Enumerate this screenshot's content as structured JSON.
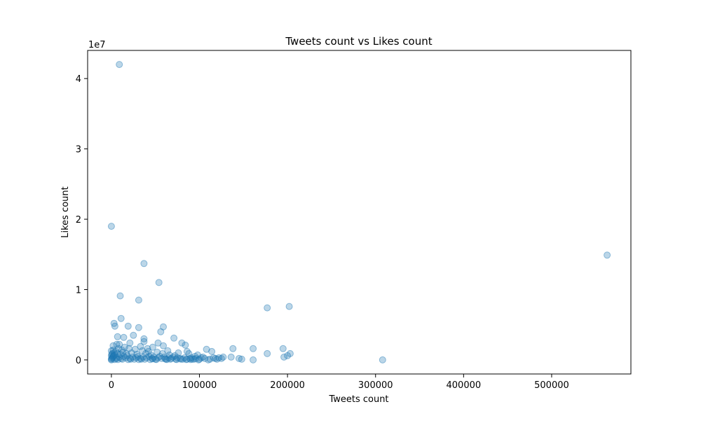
{
  "chart_data": {
    "type": "scatter",
    "title": "Tweets count vs Likes count",
    "xlabel": "Tweets count",
    "ylabel": "Likes count",
    "y_offset_label": "1e7",
    "xlim": [
      -27000,
      590000
    ],
    "ylim": [
      -2000000,
      44000000
    ],
    "x_ticks": [
      0,
      100000,
      200000,
      300000,
      400000,
      500000
    ],
    "x_tick_labels": [
      "0",
      "100000",
      "200000",
      "300000",
      "400000",
      "500000"
    ],
    "y_ticks": [
      0,
      10000000,
      20000000,
      30000000,
      40000000
    ],
    "y_tick_labels": [
      "0",
      "1",
      "2",
      "3",
      "4"
    ],
    "grid": false,
    "marker_color": "#1f77b4",
    "marker_alpha": 0.3,
    "series": [
      {
        "points": [
          [
            9000,
            42000000
          ],
          [
            0,
            19000000
          ],
          [
            563000,
            14900000
          ],
          [
            37000,
            13700000
          ],
          [
            54000,
            11000000
          ],
          [
            10000,
            9100000
          ],
          [
            31000,
            8500000
          ],
          [
            202000,
            7600000
          ],
          [
            177000,
            7400000
          ],
          [
            3000,
            5200000
          ],
          [
            11000,
            5900000
          ],
          [
            4000,
            4800000
          ],
          [
            19000,
            4800000
          ],
          [
            59000,
            4700000
          ],
          [
            31000,
            4600000
          ],
          [
            56000,
            4000000
          ],
          [
            25000,
            3500000
          ],
          [
            7000,
            3300000
          ],
          [
            14000,
            3200000
          ],
          [
            71000,
            3100000
          ],
          [
            37000,
            3000000
          ],
          [
            37000,
            2600000
          ],
          [
            80000,
            2400000
          ],
          [
            21000,
            2400000
          ],
          [
            6000,
            2200000
          ],
          [
            2000,
            2000000
          ],
          [
            9000,
            2200000
          ],
          [
            53000,
            2400000
          ],
          [
            33000,
            1900000
          ],
          [
            84000,
            2100000
          ],
          [
            41000,
            1600000
          ],
          [
            59000,
            2000000
          ],
          [
            47000,
            1800000
          ],
          [
            108000,
            1500000
          ],
          [
            114000,
            1200000
          ],
          [
            138000,
            1600000
          ],
          [
            161000,
            1600000
          ],
          [
            195000,
            1600000
          ],
          [
            177000,
            900000
          ],
          [
            203000,
            900000
          ],
          [
            200000,
            600000
          ],
          [
            196000,
            400000
          ],
          [
            136000,
            400000
          ],
          [
            145000,
            200000
          ],
          [
            148000,
            100000
          ],
          [
            161000,
            0
          ],
          [
            308000,
            0
          ],
          [
            110000,
            0
          ],
          [
            122000,
            300000
          ],
          [
            127000,
            400000
          ],
          [
            118000,
            200000
          ],
          [
            95000,
            500000
          ],
          [
            98000,
            700000
          ],
          [
            104000,
            400000
          ],
          [
            91000,
            300000
          ],
          [
            88000,
            900000
          ],
          [
            86000,
            1200000
          ],
          [
            76000,
            1000000
          ],
          [
            72000,
            600000
          ],
          [
            66000,
            700000
          ],
          [
            64000,
            1300000
          ],
          [
            58000,
            900000
          ],
          [
            52000,
            1100000
          ],
          [
            45000,
            700000
          ],
          [
            42000,
            1200000
          ],
          [
            39000,
            900000
          ],
          [
            35000,
            1300000
          ],
          [
            29000,
            800000
          ],
          [
            27000,
            1500000
          ],
          [
            23000,
            1000000
          ],
          [
            20000,
            1600000
          ],
          [
            17000,
            900000
          ],
          [
            15000,
            1800000
          ],
          [
            13000,
            1100000
          ],
          [
            12000,
            1400000
          ],
          [
            10000,
            800000
          ],
          [
            8000,
            1600000
          ],
          [
            7000,
            900000
          ],
          [
            5000,
            1200000
          ],
          [
            4000,
            700000
          ],
          [
            3000,
            1000000
          ],
          [
            2000,
            500000
          ],
          [
            1000,
            300000
          ],
          [
            0,
            100000
          ],
          [
            0,
            0
          ],
          [
            500,
            200000
          ],
          [
            1500,
            400000
          ],
          [
            2500,
            600000
          ],
          [
            6000,
            300000
          ],
          [
            9000,
            400000
          ],
          [
            11000,
            200000
          ],
          [
            14000,
            500000
          ],
          [
            16000,
            300000
          ],
          [
            18000,
            600000
          ],
          [
            21000,
            200000
          ],
          [
            24000,
            400000
          ],
          [
            26000,
            100000
          ],
          [
            28000,
            300000
          ],
          [
            30000,
            500000
          ],
          [
            33000,
            200000
          ],
          [
            36000,
            400000
          ],
          [
            38000,
            100000
          ],
          [
            40000,
            300000
          ],
          [
            43000,
            500000
          ],
          [
            46000,
            200000
          ],
          [
            48000,
            400000
          ],
          [
            50000,
            100000
          ],
          [
            53000,
            300000
          ],
          [
            55000,
            500000
          ],
          [
            57000,
            200000
          ],
          [
            60000,
            400000
          ],
          [
            62000,
            100000
          ],
          [
            65000,
            300000
          ],
          [
            68000,
            200000
          ],
          [
            70000,
            400000
          ],
          [
            73000,
            100000
          ],
          [
            75000,
            300000
          ],
          [
            78000,
            200000
          ],
          [
            81000,
            100000
          ],
          [
            83000,
            300000
          ],
          [
            86000,
            100000
          ],
          [
            89000,
            200000
          ],
          [
            92000,
            100000
          ],
          [
            96000,
            200000
          ],
          [
            100000,
            100000
          ],
          [
            102000,
            300000
          ],
          [
            106000,
            200000
          ],
          [
            112000,
            100000
          ],
          [
            116000,
            300000
          ],
          [
            120000,
            100000
          ],
          [
            125000,
            200000
          ],
          [
            3500,
            50000
          ],
          [
            5500,
            150000
          ],
          [
            7500,
            50000
          ],
          [
            12500,
            100000
          ],
          [
            19000,
            50000
          ],
          [
            22000,
            100000
          ],
          [
            31000,
            50000
          ],
          [
            34000,
            100000
          ],
          [
            44000,
            50000
          ],
          [
            47000,
            150000
          ],
          [
            51000,
            50000
          ],
          [
            61000,
            150000
          ],
          [
            63000,
            50000
          ],
          [
            67000,
            100000
          ],
          [
            74000,
            50000
          ],
          [
            79000,
            100000
          ],
          [
            85000,
            50000
          ],
          [
            90000,
            50000
          ],
          [
            94000,
            100000
          ],
          [
            99000,
            0
          ],
          [
            0,
            600000
          ],
          [
            1000,
            900000
          ],
          [
            0,
            1300000
          ],
          [
            500,
            800000
          ],
          [
            2000,
            1400000
          ]
        ]
      }
    ]
  }
}
